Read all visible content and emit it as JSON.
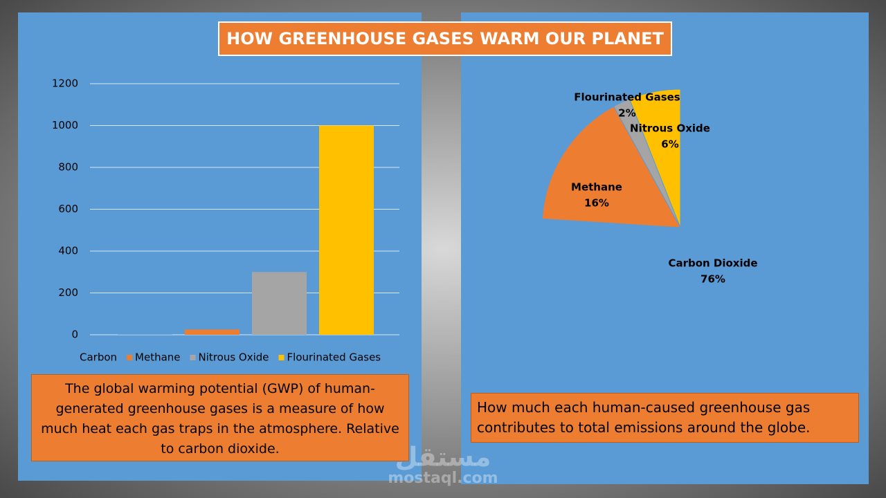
{
  "title": "HOW GREENHOUSE GASES WARM OUR PLANET",
  "chart_data": [
    {
      "type": "bar",
      "categories": [
        "Carbon",
        "Methane",
        "Nitrous Oxide",
        "Flourinated Gases"
      ],
      "values": [
        1,
        25,
        300,
        1000
      ],
      "colors": [
        "#5b9bd5",
        "#ed7d31",
        "#a5a5a5",
        "#ffc000"
      ],
      "ylim": [
        0,
        1200
      ],
      "yticks": [
        0,
        200,
        400,
        600,
        800,
        1000,
        1200
      ],
      "grid": true,
      "legend": "bottom"
    },
    {
      "type": "pie",
      "categories": [
        "Carbon Dioxide",
        "Methane",
        "Flourinated Gases",
        "Nitrous Oxide"
      ],
      "values": [
        76,
        16,
        2,
        6
      ],
      "value_labels": [
        "76%",
        "16%",
        "2%",
        "6%"
      ],
      "colors": [
        "#5b9bd5",
        "#ed7d31",
        "#a5a5a5",
        "#ffc000"
      ]
    }
  ],
  "captions": [
    "The global warming potential (GWP) of human-generated greenhouse gases is a measure of how much heat each gas traps in the atmosphere. Relative to carbon dioxide.",
    "How much each human-caused greenhouse gas contributes to total emissions around the globe."
  ],
  "watermark": [
    "مستقل",
    "mostaql.com"
  ]
}
